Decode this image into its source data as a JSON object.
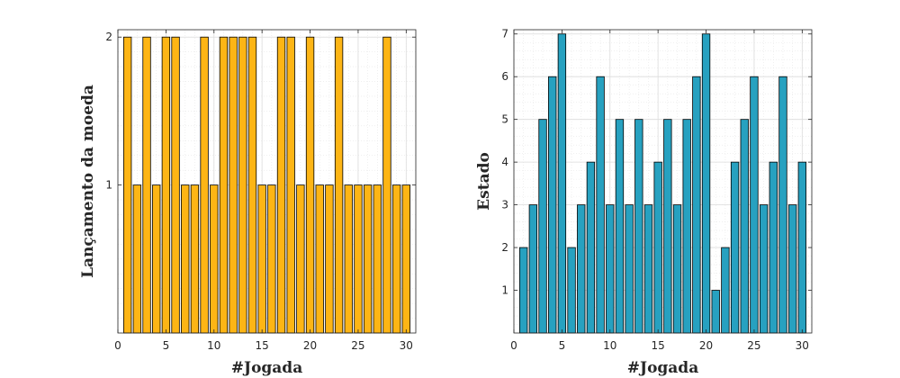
{
  "chart_data": [
    {
      "type": "bar",
      "xlabel": "#Jogada",
      "ylabel": "Lançamento da moeda",
      "xlim": [
        0,
        31
      ],
      "ylim": [
        0,
        2.05
      ],
      "xticks": [
        "0",
        "5",
        "10",
        "15",
        "20",
        "25",
        "30"
      ],
      "yticks": [
        "1",
        "2"
      ],
      "grid": true,
      "categories": [
        1,
        2,
        3,
        4,
        5,
        6,
        7,
        8,
        9,
        10,
        11,
        12,
        13,
        14,
        15,
        16,
        17,
        18,
        19,
        20,
        21,
        22,
        23,
        24,
        25,
        26,
        27,
        28,
        29,
        30
      ],
      "values": [
        2,
        1,
        2,
        1,
        2,
        2,
        1,
        1,
        2,
        1,
        2,
        2,
        2,
        2,
        1,
        1,
        2,
        2,
        1,
        2,
        1,
        1,
        2,
        1,
        1,
        1,
        1,
        2,
        1,
        1
      ],
      "bar_color": "#FDB515"
    },
    {
      "type": "bar",
      "xlabel": "#Jogada",
      "ylabel": "Estado",
      "xlim": [
        0,
        31
      ],
      "ylim": [
        0,
        7.1
      ],
      "xticks": [
        "0",
        "5",
        "10",
        "15",
        "20",
        "25",
        "30"
      ],
      "yticks": [
        "1",
        "2",
        "3",
        "4",
        "5",
        "6",
        "7"
      ],
      "grid": true,
      "categories": [
        1,
        2,
        3,
        4,
        5,
        6,
        7,
        8,
        9,
        10,
        11,
        12,
        13,
        14,
        15,
        16,
        17,
        18,
        19,
        20,
        21,
        22,
        23,
        24,
        25,
        26,
        27,
        28,
        29,
        30
      ],
      "values": [
        2,
        3,
        5,
        6,
        7,
        2,
        3,
        4,
        6,
        3,
        5,
        3,
        5,
        3,
        4,
        5,
        3,
        5,
        6,
        7,
        1,
        2,
        4,
        5,
        6,
        3,
        4,
        6,
        3,
        4
      ],
      "bar_color": "#27A1C0"
    }
  ]
}
